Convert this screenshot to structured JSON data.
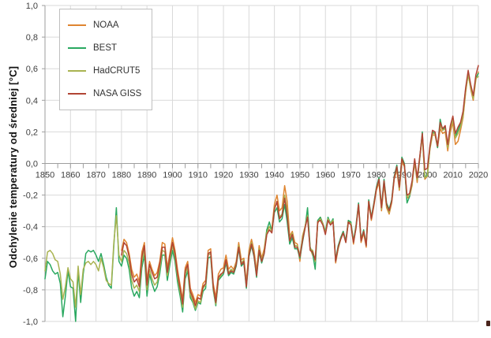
{
  "figure": {
    "background": "#ffffff",
    "colors": {
      "grid": "#d9d9d9",
      "axis": "#9e9e9e",
      "tick_label": "#3f3f3f",
      "legend_border": "#bfbfbf"
    }
  },
  "legend": {
    "position": "top-left-inside"
  },
  "chart_data": {
    "type": "line",
    "title": "",
    "xlabel": "",
    "ylabel": "Odchylenie temperatury od średniej [°C]",
    "xlim": [
      1850,
      2020
    ],
    "ylim": [
      -1.0,
      1.0
    ],
    "grid": true,
    "legend_position": "top-left-inside",
    "x_ticks": [
      1850,
      1860,
      1870,
      1880,
      1890,
      1900,
      1910,
      1920,
      1930,
      1940,
      1950,
      1960,
      1970,
      1980,
      1990,
      2000,
      2010,
      2020
    ],
    "x_minor_tick_step": 5,
    "y_ticks": [
      1.0,
      0.8,
      0.6,
      0.4,
      0.2,
      0.0,
      -0.2,
      -0.4,
      -0.6,
      -0.8,
      -1.0
    ],
    "y_tick_labels": [
      "1,0",
      "0,8",
      "0,6",
      "0,4",
      "0,2",
      "0,0",
      "-0,2",
      "-0,4",
      "-0,6",
      "-0,8",
      "-1,0"
    ],
    "series": [
      {
        "name": "NOAA",
        "color": "#df8530",
        "start_year": 1880,
        "values": [
          -0.55,
          -0.48,
          -0.5,
          -0.57,
          -0.67,
          -0.72,
          -0.7,
          -0.75,
          -0.56,
          -0.5,
          -0.74,
          -0.62,
          -0.67,
          -0.71,
          -0.69,
          -0.62,
          -0.5,
          -0.51,
          -0.66,
          -0.57,
          -0.47,
          -0.55,
          -0.67,
          -0.77,
          -0.86,
          -0.66,
          -0.62,
          -0.79,
          -0.83,
          -0.88,
          -0.83,
          -0.84,
          -0.76,
          -0.74,
          -0.55,
          -0.54,
          -0.76,
          -0.85,
          -0.7,
          -0.67,
          -0.66,
          -0.58,
          -0.67,
          -0.65,
          -0.67,
          -0.62,
          -0.5,
          -0.61,
          -0.6,
          -0.75,
          -0.55,
          -0.48,
          -0.55,
          -0.68,
          -0.52,
          -0.6,
          -0.54,
          -0.42,
          -0.4,
          -0.41,
          -0.26,
          -0.2,
          -0.3,
          -0.28,
          -0.14,
          -0.24,
          -0.46,
          -0.43,
          -0.5,
          -0.51,
          -0.62,
          -0.46,
          -0.4,
          -0.33,
          -0.54,
          -0.58,
          -0.62,
          -0.38,
          -0.34,
          -0.38,
          -0.44,
          -0.35,
          -0.38,
          -0.36,
          -0.63,
          -0.54,
          -0.47,
          -0.43,
          -0.49,
          -0.36,
          -0.38,
          -0.51,
          -0.4,
          -0.27,
          -0.5,
          -0.44,
          -0.53,
          -0.25,
          -0.36,
          -0.27,
          -0.17,
          -0.12,
          -0.3,
          -0.13,
          -0.28,
          -0.32,
          -0.25,
          -0.1,
          -0.04,
          -0.17,
          0.01,
          -0.02,
          -0.22,
          -0.21,
          -0.14,
          0.01,
          -0.12,
          0.03,
          0.18,
          -0.1,
          -0.08,
          0.09,
          0.18,
          0.18,
          0.1,
          0.22,
          0.19,
          0.2,
          0.08,
          0.2,
          0.26,
          0.12,
          0.14,
          0.21,
          0.29,
          0.45,
          0.57,
          0.47,
          0.4,
          0.53,
          0.58
        ]
      },
      {
        "name": "BEST",
        "color": "#2aa860",
        "start_year": 1850,
        "values": [
          -0.73,
          -0.62,
          -0.64,
          -0.68,
          -0.7,
          -0.69,
          -0.76,
          -0.97,
          -0.84,
          -0.68,
          -0.78,
          -0.79,
          -1.0,
          -0.68,
          -0.88,
          -0.7,
          -0.57,
          -0.55,
          -0.56,
          -0.55,
          -0.58,
          -0.62,
          -0.57,
          -0.64,
          -0.72,
          -0.77,
          -0.79,
          -0.52,
          -0.28,
          -0.62,
          -0.65,
          -0.58,
          -0.6,
          -0.67,
          -0.79,
          -0.84,
          -0.81,
          -0.85,
          -0.66,
          -0.58,
          -0.84,
          -0.7,
          -0.76,
          -0.81,
          -0.78,
          -0.7,
          -0.58,
          -0.58,
          -0.74,
          -0.64,
          -0.55,
          -0.62,
          -0.75,
          -0.84,
          -0.94,
          -0.73,
          -0.68,
          -0.85,
          -0.88,
          -0.93,
          -0.88,
          -0.89,
          -0.81,
          -0.79,
          -0.6,
          -0.59,
          -0.8,
          -0.9,
          -0.74,
          -0.72,
          -0.7,
          -0.63,
          -0.71,
          -0.69,
          -0.7,
          -0.65,
          -0.54,
          -0.65,
          -0.63,
          -0.79,
          -0.59,
          -0.52,
          -0.59,
          -0.72,
          -0.56,
          -0.63,
          -0.57,
          -0.42,
          -0.37,
          -0.43,
          -0.31,
          -0.28,
          -0.37,
          -0.35,
          -0.26,
          -0.37,
          -0.51,
          -0.47,
          -0.54,
          -0.54,
          -0.6,
          -0.5,
          -0.41,
          -0.28,
          -0.53,
          -0.57,
          -0.67,
          -0.36,
          -0.34,
          -0.38,
          -0.43,
          -0.34,
          -0.38,
          -0.35,
          -0.61,
          -0.52,
          -0.47,
          -0.43,
          -0.49,
          -0.36,
          -0.37,
          -0.49,
          -0.39,
          -0.25,
          -0.48,
          -0.42,
          -0.51,
          -0.23,
          -0.34,
          -0.25,
          -0.15,
          -0.09,
          -0.27,
          -0.1,
          -0.25,
          -0.29,
          -0.23,
          -0.08,
          -0.01,
          -0.14,
          0.04,
          0.0,
          -0.25,
          -0.21,
          -0.12,
          0.02,
          -0.1,
          0.03,
          0.2,
          -0.09,
          -0.07,
          0.1,
          0.2,
          0.19,
          0.1,
          0.28,
          0.21,
          0.23,
          0.11,
          0.23,
          0.29,
          0.17,
          0.21,
          0.25,
          0.32,
          0.47,
          0.57,
          0.49,
          0.42,
          0.54,
          0.57
        ]
      },
      {
        "name": "HadCRUT5",
        "color": "#a9b351",
        "start_year": 1850,
        "values": [
          -0.68,
          -0.56,
          -0.55,
          -0.57,
          -0.61,
          -0.62,
          -0.7,
          -0.86,
          -0.78,
          -0.66,
          -0.73,
          -0.75,
          -0.91,
          -0.65,
          -0.83,
          -0.67,
          -0.63,
          -0.62,
          -0.64,
          -0.62,
          -0.64,
          -0.68,
          -0.6,
          -0.66,
          -0.74,
          -0.76,
          -0.77,
          -0.5,
          -0.33,
          -0.58,
          -0.62,
          -0.55,
          -0.57,
          -0.63,
          -0.74,
          -0.79,
          -0.77,
          -0.81,
          -0.62,
          -0.55,
          -0.8,
          -0.67,
          -0.73,
          -0.77,
          -0.75,
          -0.67,
          -0.55,
          -0.56,
          -0.71,
          -0.61,
          -0.52,
          -0.59,
          -0.72,
          -0.81,
          -0.91,
          -0.7,
          -0.66,
          -0.83,
          -0.87,
          -0.92,
          -0.87,
          -0.88,
          -0.79,
          -0.77,
          -0.58,
          -0.57,
          -0.79,
          -0.89,
          -0.73,
          -0.71,
          -0.68,
          -0.62,
          -0.69,
          -0.67,
          -0.68,
          -0.63,
          -0.52,
          -0.63,
          -0.61,
          -0.77,
          -0.57,
          -0.5,
          -0.57,
          -0.7,
          -0.54,
          -0.61,
          -0.56,
          -0.44,
          -0.4,
          -0.43,
          -0.28,
          -0.25,
          -0.34,
          -0.32,
          -0.2,
          -0.3,
          -0.48,
          -0.44,
          -0.52,
          -0.52,
          -0.58,
          -0.47,
          -0.4,
          -0.33,
          -0.54,
          -0.55,
          -0.62,
          -0.37,
          -0.35,
          -0.38,
          -0.44,
          -0.35,
          -0.38,
          -0.36,
          -0.62,
          -0.54,
          -0.48,
          -0.44,
          -0.5,
          -0.37,
          -0.38,
          -0.5,
          -0.4,
          -0.26,
          -0.49,
          -0.43,
          -0.52,
          -0.24,
          -0.35,
          -0.26,
          -0.16,
          -0.11,
          -0.29,
          -0.12,
          -0.27,
          -0.31,
          -0.24,
          -0.09,
          -0.03,
          -0.16,
          0.02,
          -0.01,
          -0.21,
          -0.2,
          -0.12,
          0.02,
          -0.1,
          0.04,
          0.17,
          -0.09,
          -0.08,
          0.1,
          0.19,
          0.19,
          0.11,
          0.24,
          0.21,
          0.22,
          0.1,
          0.22,
          0.28,
          0.16,
          0.19,
          0.23,
          0.3,
          0.46,
          0.56,
          0.48,
          0.41,
          0.54,
          0.55
        ]
      },
      {
        "name": "NASA GISS",
        "color": "#b14434",
        "start_year": 1880,
        "values": [
          -0.58,
          -0.5,
          -0.52,
          -0.59,
          -0.7,
          -0.75,
          -0.73,
          -0.78,
          -0.59,
          -0.52,
          -0.77,
          -0.64,
          -0.69,
          -0.73,
          -0.72,
          -0.64,
          -0.53,
          -0.53,
          -0.69,
          -0.59,
          -0.5,
          -0.57,
          -0.7,
          -0.79,
          -0.89,
          -0.68,
          -0.64,
          -0.81,
          -0.85,
          -0.9,
          -0.85,
          -0.86,
          -0.78,
          -0.76,
          -0.57,
          -0.56,
          -0.78,
          -0.88,
          -0.72,
          -0.7,
          -0.69,
          -0.61,
          -0.7,
          -0.68,
          -0.69,
          -0.64,
          -0.53,
          -0.64,
          -0.62,
          -0.78,
          -0.58,
          -0.51,
          -0.58,
          -0.71,
          -0.55,
          -0.62,
          -0.57,
          -0.45,
          -0.42,
          -0.44,
          -0.29,
          -0.24,
          -0.35,
          -0.33,
          -0.22,
          -0.33,
          -0.49,
          -0.45,
          -0.53,
          -0.53,
          -0.59,
          -0.49,
          -0.41,
          -0.34,
          -0.55,
          -0.56,
          -0.61,
          -0.37,
          -0.36,
          -0.39,
          -0.45,
          -0.36,
          -0.39,
          -0.37,
          -0.62,
          -0.53,
          -0.48,
          -0.44,
          -0.5,
          -0.37,
          -0.39,
          -0.5,
          -0.41,
          -0.26,
          -0.49,
          -0.43,
          -0.52,
          -0.24,
          -0.35,
          -0.26,
          -0.16,
          -0.1,
          -0.28,
          -0.11,
          -0.26,
          -0.3,
          -0.24,
          -0.09,
          -0.02,
          -0.15,
          0.03,
          -0.01,
          -0.2,
          -0.19,
          -0.11,
          0.03,
          -0.09,
          0.04,
          0.19,
          -0.04,
          -0.03,
          0.11,
          0.21,
          0.2,
          0.11,
          0.26,
          0.22,
          0.24,
          0.12,
          0.24,
          0.3,
          0.19,
          0.23,
          0.26,
          0.33,
          0.48,
          0.59,
          0.5,
          0.43,
          0.56,
          0.62
        ]
      }
    ]
  }
}
